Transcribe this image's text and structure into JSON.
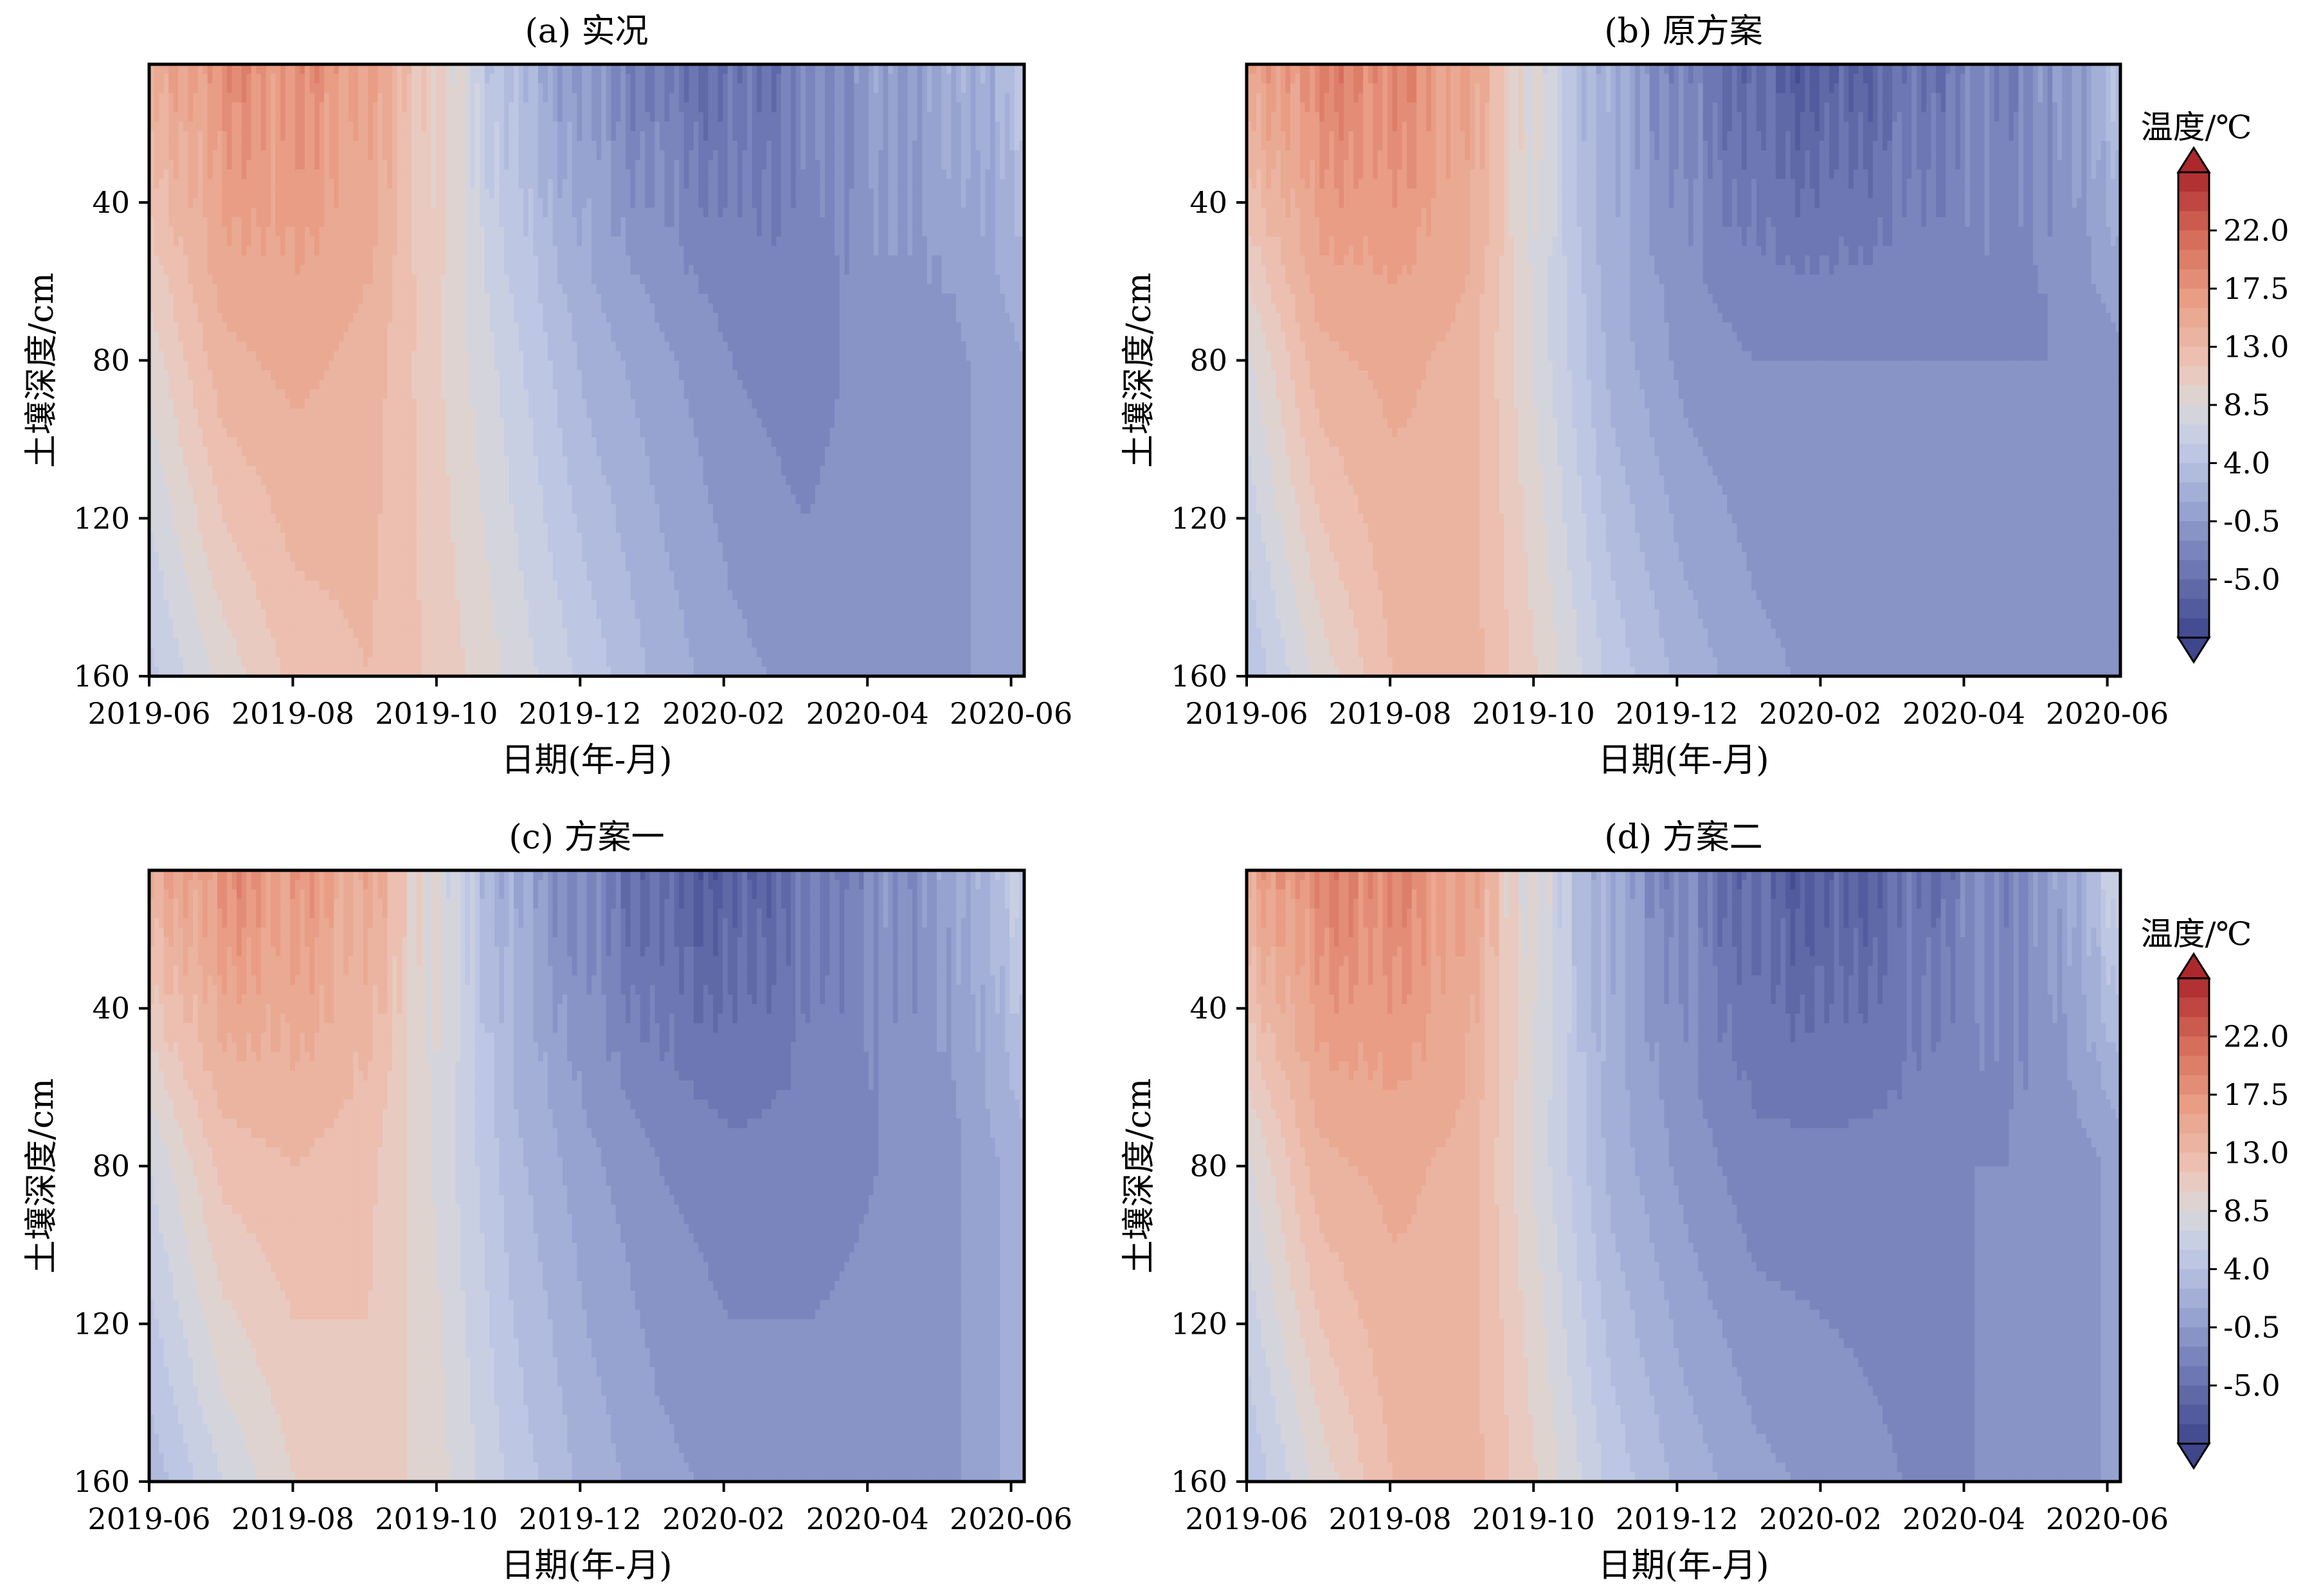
{
  "figure": {
    "colorbar_title": "温度/℃",
    "colorbar_ticks": [
      "22.0",
      "17.5",
      "13.0",
      "8.5",
      "4.0",
      "-0.5",
      "-5.0"
    ]
  },
  "chart_data": [
    {
      "type": "heatmap",
      "title": "(a) 实况",
      "xlabel": "日期(年-月)",
      "ylabel": "土壤深度/cm",
      "x_ticks": [
        "2019-06",
        "2019-08",
        "2019-10",
        "2019-12",
        "2020-02",
        "2020-04",
        "2020-06"
      ],
      "y_ticks": [
        "40",
        "80",
        "120",
        "160"
      ],
      "y_range_cm": [
        5,
        160
      ],
      "x_range": [
        "2019-06",
        "2020-06"
      ],
      "value_unit": "℃",
      "value_range": [
        -9.5,
        26.5
      ],
      "approx_temperature_by_month": {
        "months": [
          "2019-06",
          "2019-07",
          "2019-08",
          "2019-09",
          "2019-10",
          "2019-11",
          "2019-12",
          "2020-01",
          "2020-02",
          "2020-03",
          "2020-04",
          "2020-05",
          "2020-06"
        ],
        "surface": [
          14,
          18,
          18,
          16,
          10,
          3,
          -1,
          -4,
          -5,
          -3,
          -0.5,
          1,
          4
        ],
        "depth_80cm": [
          9,
          14,
          15,
          14,
          10,
          6,
          2,
          0,
          -2,
          -3,
          -1,
          -1,
          1
        ],
        "depth_160cm": [
          5,
          9,
          12,
          13,
          11,
          8,
          5,
          2,
          0,
          -1,
          -1,
          -1,
          1
        ]
      }
    },
    {
      "type": "heatmap",
      "title": "(b) 原方案",
      "xlabel": "日期(年-月)",
      "ylabel": "土壤深度/cm",
      "x_ticks": [
        "2019-06",
        "2019-08",
        "2019-10",
        "2019-12",
        "2020-02",
        "2020-04",
        "2020-06"
      ],
      "y_ticks": [
        "40",
        "80",
        "120",
        "160"
      ],
      "y_range_cm": [
        5,
        160
      ],
      "x_range": [
        "2019-06",
        "2020-06"
      ],
      "value_unit": "℃",
      "value_range": [
        -9.5,
        26.5
      ],
      "approx_temperature_by_month": {
        "months": [
          "2019-06",
          "2019-07",
          "2019-08",
          "2019-09",
          "2019-10",
          "2019-11",
          "2019-12",
          "2020-01",
          "2020-02",
          "2020-03",
          "2020-04",
          "2020-05",
          "2020-06"
        ],
        "surface": [
          15,
          19,
          19,
          16,
          8,
          1,
          -3,
          -6,
          -7,
          -5,
          -3,
          -2,
          4
        ],
        "depth_80cm": [
          8,
          14,
          15,
          14,
          8,
          2,
          -1,
          -2,
          -2,
          -2,
          -2,
          -2,
          -1
        ],
        "depth_160cm": [
          4,
          9,
          13,
          14,
          10,
          5,
          2,
          0,
          -1,
          -2,
          -2,
          -2,
          -2
        ]
      }
    },
    {
      "type": "heatmap",
      "title": "(c) 方案一",
      "xlabel": "日期(年-月)",
      "ylabel": "土壤深度/cm",
      "x_ticks": [
        "2019-06",
        "2019-08",
        "2019-10",
        "2019-12",
        "2020-02",
        "2020-04",
        "2020-06"
      ],
      "y_ticks": [
        "40",
        "80",
        "120",
        "160"
      ],
      "y_range_cm": [
        5,
        160
      ],
      "x_range": [
        "2019-06",
        "2020-06"
      ],
      "value_unit": "℃",
      "value_range": [
        -9.5,
        26.5
      ],
      "approx_temperature_by_month": {
        "months": [
          "2019-06",
          "2019-07",
          "2019-08",
          "2019-09",
          "2019-10",
          "2019-11",
          "2019-12",
          "2020-01",
          "2020-02",
          "2020-03",
          "2020-04",
          "2020-05",
          "2020-06"
        ],
        "surface": [
          14,
          18,
          17,
          15,
          8,
          1,
          -3,
          -6,
          -7,
          -4,
          -2,
          0,
          6
        ],
        "depth_80cm": [
          7,
          12,
          13,
          12,
          8,
          3,
          0,
          -2,
          -3,
          -3,
          -2,
          -1,
          2
        ],
        "depth_160cm": [
          3,
          7,
          10,
          11,
          9,
          5,
          2,
          0,
          -1,
          -1,
          -1,
          -1,
          2
        ]
      }
    },
    {
      "type": "heatmap",
      "title": "(d) 方案二",
      "xlabel": "日期(年-月)",
      "ylabel": "土壤深度/cm",
      "x_ticks": [
        "2019-06",
        "2019-08",
        "2019-10",
        "2019-12",
        "2020-02",
        "2020-04",
        "2020-06"
      ],
      "y_ticks": [
        "40",
        "80",
        "120",
        "160"
      ],
      "y_range_cm": [
        5,
        160
      ],
      "x_range": [
        "2019-06",
        "2020-06"
      ],
      "value_unit": "℃",
      "value_range": [
        -9.5,
        26.5
      ],
      "approx_temperature_by_month": {
        "months": [
          "2019-06",
          "2019-07",
          "2019-08",
          "2019-09",
          "2019-10",
          "2019-11",
          "2019-12",
          "2020-01",
          "2020-02",
          "2020-03",
          "2020-04",
          "2020-05",
          "2020-06"
        ],
        "surface": [
          15,
          19,
          19,
          16,
          8,
          1,
          -3,
          -6,
          -7,
          -5,
          -3,
          -1,
          7
        ],
        "depth_80cm": [
          8,
          14,
          15,
          14,
          8,
          2,
          -1,
          -3,
          -3,
          -3,
          -2,
          -2,
          0
        ],
        "depth_160cm": [
          4,
          9,
          13,
          14,
          10,
          5,
          2,
          0,
          -1,
          -2,
          -2,
          -2,
          0
        ]
      }
    }
  ]
}
